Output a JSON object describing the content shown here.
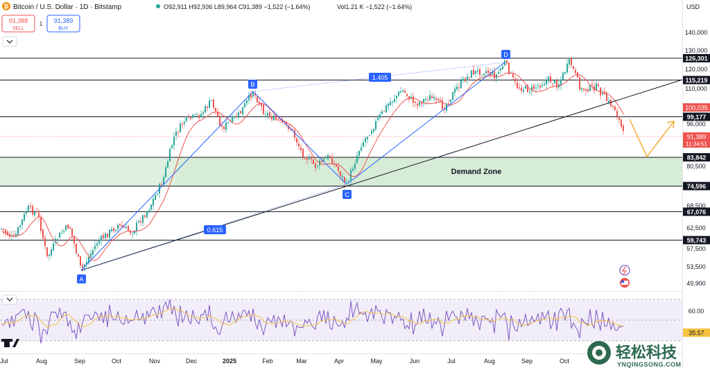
{
  "header": {
    "symbol_title": "Bitcoin / U.S. Dollar · 1D · Bitstamp",
    "ohlc": "O92,911 H92,936 L89,964 C91,389 −1,522 (−1.64%)",
    "vol": "Vol1.21 K −1,522 (−1.64%)",
    "currency": "USD"
  },
  "trade": {
    "sell_price": "91,388",
    "sell_label": "SELL",
    "spread": "1",
    "buy_price": "91,389",
    "buy_label": "BUY"
  },
  "price_axis": {
    "ticks": [
      "140,000",
      "130,000",
      "120,000",
      "110,000",
      "96,000",
      "80,500",
      "68,500",
      "62,500",
      "57,500",
      "53,500",
      "49,900"
    ],
    "rsi_ticks": [
      "60.00"
    ]
  },
  "levels": [
    {
      "value": "126,301"
    },
    {
      "value": "115,219"
    },
    {
      "value": "99,177"
    },
    {
      "value": "83,842"
    },
    {
      "value": "74,596"
    },
    {
      "value": "67,076"
    },
    {
      "value": "59,743"
    }
  ],
  "badges": {
    "ma": "100,035",
    "last": "91,389",
    "countdown": "11:34:51",
    "rsi": "35.57"
  },
  "annotations": {
    "points": [
      "A",
      "B",
      "C",
      "D"
    ],
    "fib_upper": "1.405",
    "fib_lower": "0.615",
    "zone": "Demand Zone"
  },
  "time_axis": [
    "Jul",
    "Aug",
    "Sep",
    "Oct",
    "Nov",
    "Dec",
    "2025",
    "Feb",
    "Mar",
    "Apr",
    "May",
    "Jun",
    "Jul",
    "Aug",
    "Sep",
    "Oct"
  ],
  "watermark": "轻松科技",
  "watermark_sub": "YNQINGSONG.COM",
  "colors": {
    "up": "#26a69a",
    "down": "#ef5350",
    "ma": "#ef5350",
    "trendline": "#2962ff",
    "zone": "#c8e6c9",
    "rsi": "#7e57c2",
    "projection": "#f5a623"
  },
  "chart_data": {
    "type": "candlestick",
    "title": "Bitcoin / U.S. Dollar · 1D · Bitstamp",
    "ylabel": "USD",
    "ylim": [
      48000,
      145000
    ],
    "horizontal_levels": [
      126301,
      115219,
      99177,
      83842,
      74596,
      67076,
      59743
    ],
    "demand_zone": [
      74596,
      83842
    ],
    "swing_points": [
      {
        "label": "A",
        "x": "Sep 2024",
        "y": 53000
      },
      {
        "label": "B",
        "x": "Jan 2025",
        "y": 109500
      },
      {
        "label": "C",
        "x": "Apr 2025",
        "y": 74500
      },
      {
        "label": "D",
        "x": "Aug 2025",
        "y": 124500
      }
    ],
    "last_close": 91389,
    "ma_value": 100035,
    "rsi_value": 35.57
  }
}
